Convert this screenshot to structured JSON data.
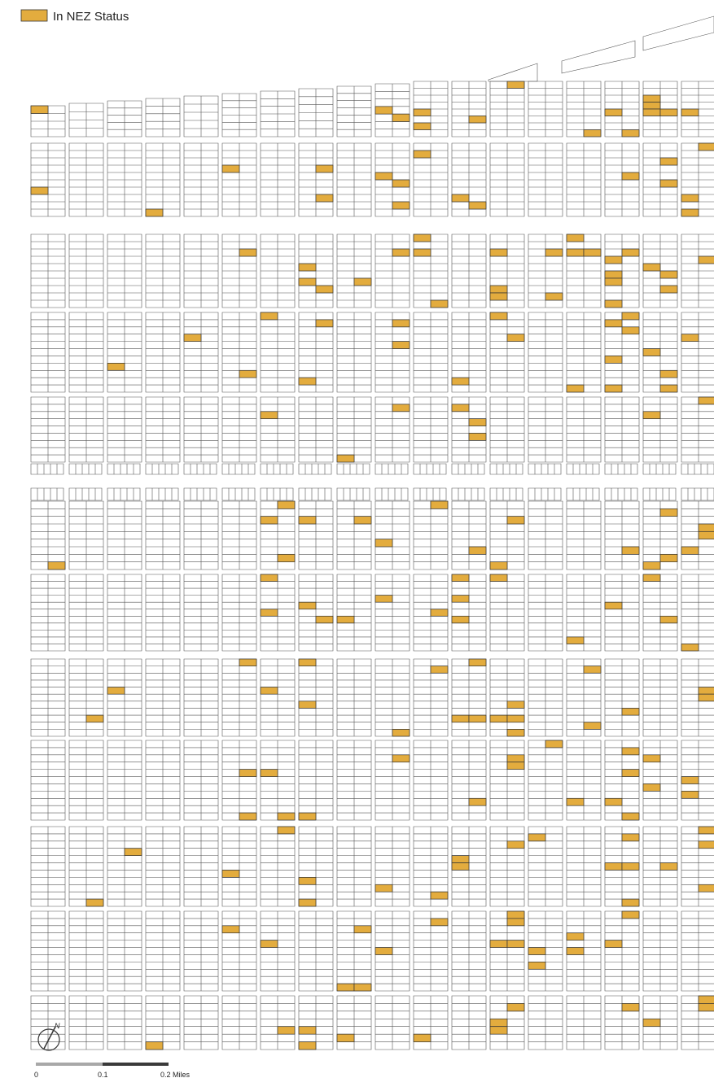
{
  "legend": {
    "label": "In NEZ Status"
  },
  "scale_bar": {
    "labels": [
      "0",
      "0.1",
      "0.2 Miles"
    ]
  }
}
